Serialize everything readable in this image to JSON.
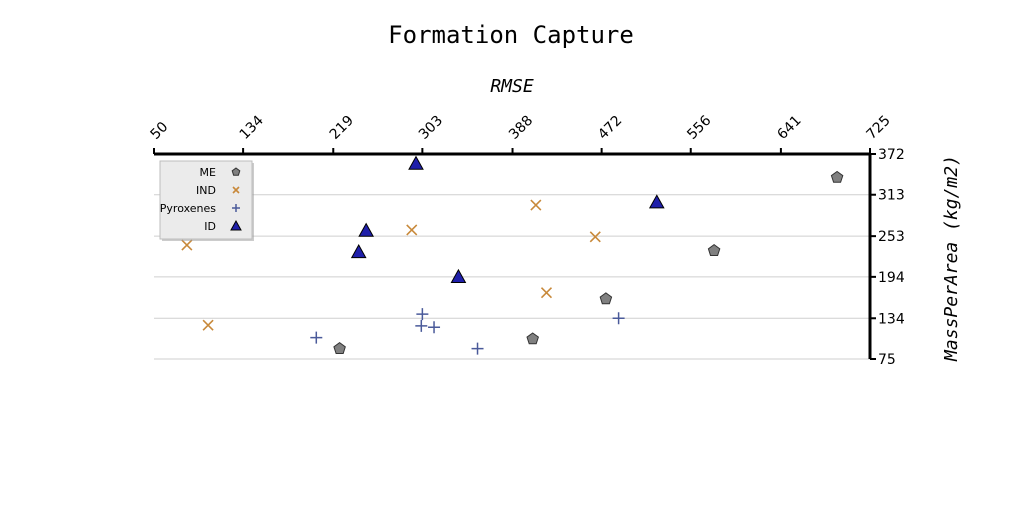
{
  "chart_data": {
    "type": "scatter",
    "title": "Formation Capture",
    "xlabel": "RMSE",
    "ylabel": "MassPerArea (kg/m2)",
    "xlim": [
      50,
      725
    ],
    "ylim": [
      75,
      372
    ],
    "x_ticks": [
      "50",
      "134",
      "219",
      "303",
      "388",
      "472",
      "556",
      "641",
      "725"
    ],
    "y_ticks": [
      "372",
      "313",
      "253",
      "194",
      "134",
      "75"
    ],
    "grid": "horizontal",
    "legend_position": "upper-left",
    "series": [
      {
        "name": "ME",
        "marker": "pentagon",
        "color": "#808080",
        "points": [
          {
            "x": 225,
            "y": 90
          },
          {
            "x": 407,
            "y": 104
          },
          {
            "x": 476,
            "y": 162
          },
          {
            "x": 578,
            "y": 232
          },
          {
            "x": 694,
            "y": 338
          }
        ]
      },
      {
        "name": "IND",
        "marker": "x",
        "color": "#c8893a",
        "points": [
          {
            "x": 81,
            "y": 240
          },
          {
            "x": 101,
            "y": 124
          },
          {
            "x": 293,
            "y": 262
          },
          {
            "x": 410,
            "y": 298
          },
          {
            "x": 420,
            "y": 171
          },
          {
            "x": 466,
            "y": 252
          }
        ]
      },
      {
        "name": "Pyroxenes",
        "marker": "plus",
        "color": "#4a5a9a",
        "points": [
          {
            "x": 203,
            "y": 106
          },
          {
            "x": 302,
            "y": 123
          },
          {
            "x": 303,
            "y": 140
          },
          {
            "x": 314,
            "y": 121
          },
          {
            "x": 355,
            "y": 90
          },
          {
            "x": 488,
            "y": 134
          }
        ]
      },
      {
        "name": "ID",
        "marker": "triangle",
        "color": "#1f1faa",
        "points": [
          {
            "x": 243,
            "y": 230
          },
          {
            "x": 250,
            "y": 261
          },
          {
            "x": 297,
            "y": 358
          },
          {
            "x": 337,
            "y": 194
          },
          {
            "x": 524,
            "y": 302
          }
        ]
      }
    ]
  }
}
